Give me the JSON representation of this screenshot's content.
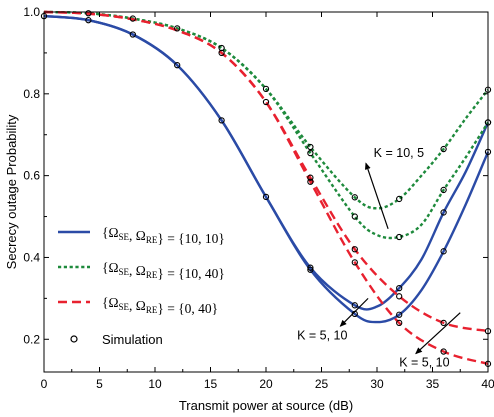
{
  "chart_data": {
    "type": "line",
    "xlabel": "Transmit power at source (dB)",
    "ylabel": "Secrecy outage Probability",
    "xlim": [
      0,
      40
    ],
    "ylim": [
      0.12,
      1.0
    ],
    "x_ticks": [
      0,
      5,
      10,
      15,
      20,
      25,
      30,
      35,
      40
    ],
    "y_ticks": [
      0.2,
      0.4,
      0.6,
      0.8,
      1.0
    ],
    "x_tick_labels": [
      "0",
      "5",
      "10",
      "15",
      "20",
      "25",
      "30",
      "35",
      "40"
    ],
    "y_tick_labels": [
      "0.2",
      "0.4",
      "0.6",
      "0.8",
      "1.0"
    ],
    "grid": false,
    "legend_position": "bottom-left",
    "series": [
      {
        "legend_index": 0,
        "color": "#2b4ba6",
        "dash": "solid",
        "x": [
          0,
          4,
          8,
          12,
          16,
          20,
          24,
          28,
          30,
          32,
          34,
          36,
          38,
          40
        ],
        "y": [
          0.99,
          0.98,
          0.945,
          0.87,
          0.735,
          0.548,
          0.375,
          0.283,
          0.28,
          0.325,
          0.395,
          0.51,
          0.61,
          0.73
        ]
      },
      {
        "legend_index": 0,
        "color": "#2b4ba6",
        "dash": "solid",
        "x": [
          0,
          4,
          8,
          12,
          16,
          20,
          24,
          28,
          30,
          32,
          34,
          36,
          38,
          40
        ],
        "y": [
          0.99,
          0.98,
          0.945,
          0.87,
          0.735,
          0.548,
          0.37,
          0.262,
          0.242,
          0.26,
          0.32,
          0.415,
          0.53,
          0.658
        ]
      },
      {
        "legend_index": 1,
        "color": "#1e8a3c",
        "dash": "dot",
        "x": [
          0,
          4,
          8,
          12,
          16,
          20,
          24,
          28,
          30,
          32,
          34,
          36,
          38,
          40
        ],
        "y": [
          1.0,
          0.997,
          0.984,
          0.96,
          0.912,
          0.812,
          0.67,
          0.547,
          0.52,
          0.543,
          0.6,
          0.665,
          0.74,
          0.81
        ]
      },
      {
        "legend_index": 1,
        "color": "#1e8a3c",
        "dash": "dot",
        "x": [
          0,
          4,
          8,
          12,
          16,
          20,
          24,
          28,
          30,
          32,
          34,
          36,
          38,
          40
        ],
        "y": [
          1.0,
          0.997,
          0.984,
          0.96,
          0.912,
          0.812,
          0.655,
          0.5,
          0.455,
          0.45,
          0.48,
          0.565,
          0.645,
          0.73
        ]
      },
      {
        "legend_index": 2,
        "color": "#e8212f",
        "dash": "dash",
        "x": [
          0,
          4,
          8,
          12,
          16,
          20,
          24,
          28,
          32,
          36,
          40
        ],
        "y": [
          1.0,
          0.996,
          0.982,
          0.955,
          0.9,
          0.78,
          0.595,
          0.42,
          0.305,
          0.24,
          0.22
        ]
      },
      {
        "legend_index": 2,
        "color": "#e8212f",
        "dash": "dash",
        "x": [
          0,
          4,
          8,
          12,
          16,
          20,
          24,
          28,
          32,
          36,
          40
        ],
        "y": [
          1.0,
          0.996,
          0.982,
          0.955,
          0.9,
          0.78,
          0.585,
          0.388,
          0.24,
          0.17,
          0.14
        ]
      }
    ],
    "simulation_points": [
      [
        0,
        0.99
      ],
      [
        4,
        0.98
      ],
      [
        4,
        0.997
      ],
      [
        8,
        0.945
      ],
      [
        8,
        0.984
      ],
      [
        12,
        0.87
      ],
      [
        12,
        0.96
      ],
      [
        16,
        0.735
      ],
      [
        16,
        0.912
      ],
      [
        16,
        0.9
      ],
      [
        20,
        0.548
      ],
      [
        20,
        0.812
      ],
      [
        20,
        0.78
      ],
      [
        24,
        0.375
      ],
      [
        24,
        0.37
      ],
      [
        24,
        0.67
      ],
      [
        24,
        0.655
      ],
      [
        24,
        0.595
      ],
      [
        24,
        0.585
      ],
      [
        28,
        0.283
      ],
      [
        28,
        0.262
      ],
      [
        28,
        0.547
      ],
      [
        28,
        0.5
      ],
      [
        28,
        0.42
      ],
      [
        28,
        0.388
      ],
      [
        32,
        0.325
      ],
      [
        32,
        0.26
      ],
      [
        32,
        0.543
      ],
      [
        32,
        0.45
      ],
      [
        32,
        0.305
      ],
      [
        32,
        0.24
      ],
      [
        36,
        0.51
      ],
      [
        36,
        0.415
      ],
      [
        36,
        0.665
      ],
      [
        36,
        0.565
      ],
      [
        36,
        0.24
      ],
      [
        36,
        0.17
      ],
      [
        40,
        0.73
      ],
      [
        40,
        0.658
      ],
      [
        40,
        0.81
      ],
      [
        40,
        0.73
      ],
      [
        40,
        0.22
      ],
      [
        40,
        0.14
      ]
    ],
    "legend": [
      {
        "mathA": "{Ω",
        "subA": "SE",
        "mathB": ", Ω",
        "subB": "RE",
        "mathC": "} = {10, 10}",
        "color": "#2b4ba6",
        "dash": "solid"
      },
      {
        "mathA": "{Ω",
        "subA": "SE",
        "mathB": ", Ω",
        "subB": "RE",
        "mathC": "} = {10, 40}",
        "color": "#1e8a3c",
        "dash": "dot"
      },
      {
        "mathA": "{Ω",
        "subA": "SE",
        "mathB": ", Ω",
        "subB": "RE",
        "mathC": "} = {0, 40}",
        "color": "#e8212f",
        "dash": "dash"
      },
      {
        "label": "Simulation",
        "marker": "circle"
      }
    ],
    "annotations": [
      {
        "text": "K = 10, 5",
        "arrow_from": [
          31.0,
          0.47
        ],
        "arrow_to": [
          29.0,
          0.63
        ],
        "label_at": [
          29.7,
          0.645
        ]
      },
      {
        "text": "K = 5, 10",
        "arrow_from": [
          29.2,
          0.3
        ],
        "arrow_to": [
          26.7,
          0.232
        ],
        "label_at": [
          22.8,
          0.2
        ]
      },
      {
        "text": "K = 5, 10",
        "arrow_from": [
          37.5,
          0.265
        ],
        "arrow_to": [
          33.5,
          0.165
        ],
        "label_at": [
          32.0,
          0.133
        ]
      }
    ]
  }
}
